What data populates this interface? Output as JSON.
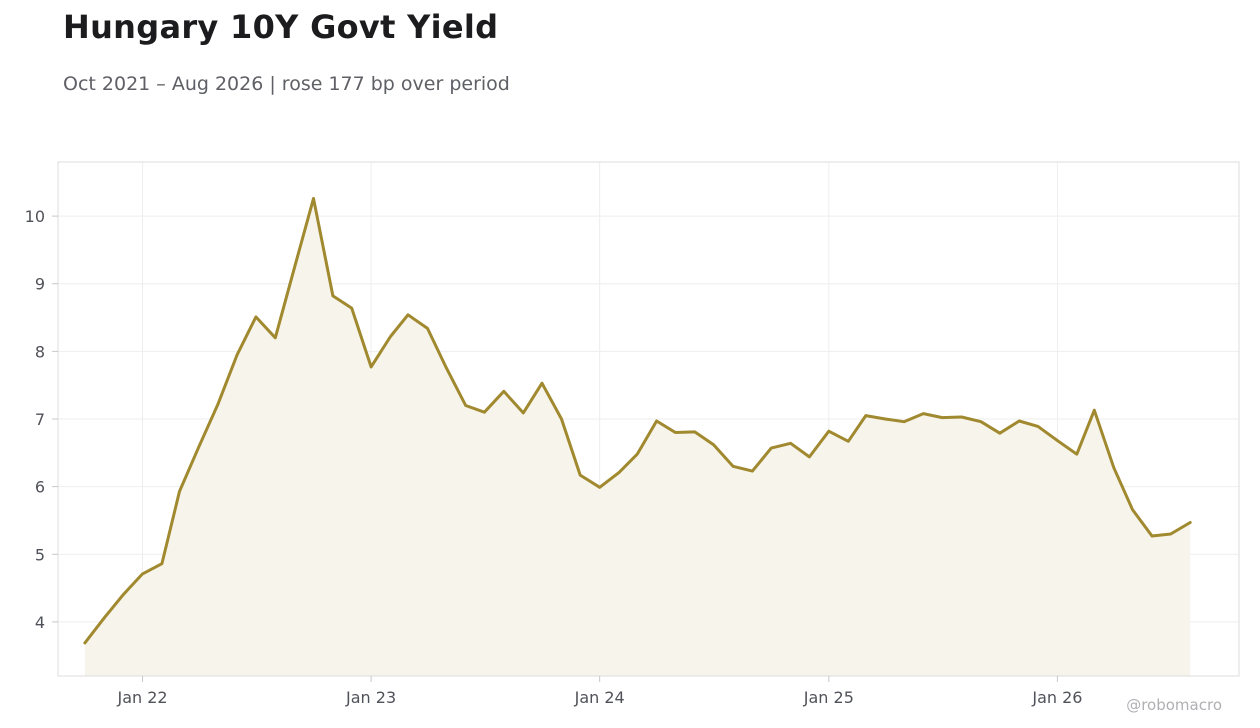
{
  "chart_data": {
    "type": "area",
    "title": "Hungary 10Y Govt Yield",
    "subtitle": "Oct 2021 – Aug 2026 | rose 177 bp over period",
    "x_ticks": [
      "Jan 22",
      "Jan 23",
      "Jan 24",
      "Jan 25",
      "Jan 26"
    ],
    "y_ticks": [
      "4",
      "5",
      "6",
      "7",
      "8",
      "9",
      "10"
    ],
    "ylim": [
      3.2,
      10.8
    ],
    "xlim": [
      "2021-08-19",
      "2026-10-18"
    ],
    "grid": true,
    "line_color": "#a0892e",
    "fill_color": "#f7f4ec",
    "series": [
      {
        "dates": [
          "2021-10",
          "2021-11",
          "2021-12",
          "2022-01",
          "2022-02",
          "2022-03",
          "2022-04",
          "2022-05",
          "2022-06",
          "2022-07",
          "2022-08",
          "2022-09",
          "2022-10",
          "2022-11",
          "2022-12",
          "2023-01",
          "2023-02",
          "2023-03",
          "2023-04",
          "2023-05",
          "2023-06",
          "2023-07",
          "2023-08",
          "2023-09",
          "2023-10",
          "2023-11",
          "2023-12",
          "2024-01",
          "2024-02",
          "2024-03",
          "2024-04",
          "2024-05",
          "2024-06",
          "2024-07",
          "2024-08",
          "2024-09",
          "2024-10",
          "2024-11",
          "2024-12",
          "2025-01",
          "2025-02",
          "2025-03",
          "2025-04",
          "2025-05",
          "2025-06",
          "2025-07",
          "2025-08",
          "2025-09",
          "2025-10",
          "2025-11",
          "2025-12",
          "2026-01",
          "2026-02",
          "2026-03",
          "2026-04",
          "2026-05",
          "2026-06",
          "2026-07",
          "2026-08"
        ],
        "values": [
          3.69,
          4.06,
          4.4,
          4.71,
          4.86,
          5.93,
          6.59,
          7.21,
          7.95,
          8.51,
          8.2,
          9.25,
          10.26,
          8.82,
          8.64,
          7.77,
          8.22,
          8.54,
          8.34,
          7.76,
          7.2,
          7.1,
          7.41,
          7.09,
          7.53,
          7.0,
          6.17,
          5.99,
          6.21,
          6.48,
          6.97,
          6.8,
          6.81,
          6.62,
          6.3,
          6.23,
          6.57,
          6.64,
          6.44,
          6.82,
          6.67,
          7.05,
          7.0,
          6.96,
          7.08,
          7.02,
          7.03,
          6.96,
          6.79,
          6.97,
          6.89,
          6.68,
          6.48,
          7.13,
          6.28,
          5.66,
          5.27,
          5.3,
          5.47
        ]
      }
    ]
  },
  "credit": "@robomacro"
}
